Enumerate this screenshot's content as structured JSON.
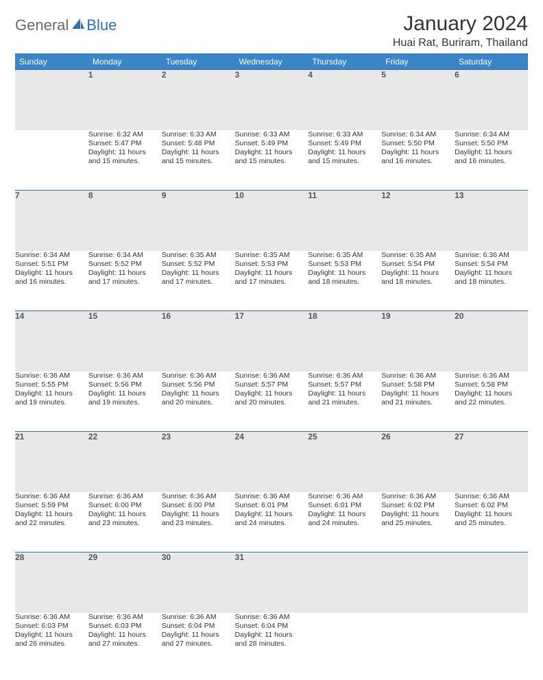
{
  "brand": {
    "part1": "General",
    "part2": "Blue",
    "accent_color": "#2f71b8",
    "grey_color": "#6a6a6a"
  },
  "header": {
    "title": "January 2024",
    "location": "Huai Rat, Buriram, Thailand"
  },
  "colors": {
    "header_bg": "#3a85c8",
    "header_text": "#ffffff",
    "daynum_bg": "#e8e8e8",
    "row_border": "#2f6fa8",
    "body_text": "#333333"
  },
  "weekdays": [
    "Sunday",
    "Monday",
    "Tuesday",
    "Wednesday",
    "Thursday",
    "Friday",
    "Saturday"
  ],
  "weeks": [
    [
      null,
      {
        "n": "1",
        "sr": "Sunrise: 6:32 AM",
        "ss": "Sunset: 5:47 PM",
        "d1": "Daylight: 11 hours",
        "d2": "and 15 minutes."
      },
      {
        "n": "2",
        "sr": "Sunrise: 6:33 AM",
        "ss": "Sunset: 5:48 PM",
        "d1": "Daylight: 11 hours",
        "d2": "and 15 minutes."
      },
      {
        "n": "3",
        "sr": "Sunrise: 6:33 AM",
        "ss": "Sunset: 5:49 PM",
        "d1": "Daylight: 11 hours",
        "d2": "and 15 minutes."
      },
      {
        "n": "4",
        "sr": "Sunrise: 6:33 AM",
        "ss": "Sunset: 5:49 PM",
        "d1": "Daylight: 11 hours",
        "d2": "and 15 minutes."
      },
      {
        "n": "5",
        "sr": "Sunrise: 6:34 AM",
        "ss": "Sunset: 5:50 PM",
        "d1": "Daylight: 11 hours",
        "d2": "and 16 minutes."
      },
      {
        "n": "6",
        "sr": "Sunrise: 6:34 AM",
        "ss": "Sunset: 5:50 PM",
        "d1": "Daylight: 11 hours",
        "d2": "and 16 minutes."
      }
    ],
    [
      {
        "n": "7",
        "sr": "Sunrise: 6:34 AM",
        "ss": "Sunset: 5:51 PM",
        "d1": "Daylight: 11 hours",
        "d2": "and 16 minutes."
      },
      {
        "n": "8",
        "sr": "Sunrise: 6:34 AM",
        "ss": "Sunset: 5:52 PM",
        "d1": "Daylight: 11 hours",
        "d2": "and 17 minutes."
      },
      {
        "n": "9",
        "sr": "Sunrise: 6:35 AM",
        "ss": "Sunset: 5:52 PM",
        "d1": "Daylight: 11 hours",
        "d2": "and 17 minutes."
      },
      {
        "n": "10",
        "sr": "Sunrise: 6:35 AM",
        "ss": "Sunset: 5:53 PM",
        "d1": "Daylight: 11 hours",
        "d2": "and 17 minutes."
      },
      {
        "n": "11",
        "sr": "Sunrise: 6:35 AM",
        "ss": "Sunset: 5:53 PM",
        "d1": "Daylight: 11 hours",
        "d2": "and 18 minutes."
      },
      {
        "n": "12",
        "sr": "Sunrise: 6:35 AM",
        "ss": "Sunset: 5:54 PM",
        "d1": "Daylight: 11 hours",
        "d2": "and 18 minutes."
      },
      {
        "n": "13",
        "sr": "Sunrise: 6:36 AM",
        "ss": "Sunset: 5:54 PM",
        "d1": "Daylight: 11 hours",
        "d2": "and 18 minutes."
      }
    ],
    [
      {
        "n": "14",
        "sr": "Sunrise: 6:36 AM",
        "ss": "Sunset: 5:55 PM",
        "d1": "Daylight: 11 hours",
        "d2": "and 19 minutes."
      },
      {
        "n": "15",
        "sr": "Sunrise: 6:36 AM",
        "ss": "Sunset: 5:56 PM",
        "d1": "Daylight: 11 hours",
        "d2": "and 19 minutes."
      },
      {
        "n": "16",
        "sr": "Sunrise: 6:36 AM",
        "ss": "Sunset: 5:56 PM",
        "d1": "Daylight: 11 hours",
        "d2": "and 20 minutes."
      },
      {
        "n": "17",
        "sr": "Sunrise: 6:36 AM",
        "ss": "Sunset: 5:57 PM",
        "d1": "Daylight: 11 hours",
        "d2": "and 20 minutes."
      },
      {
        "n": "18",
        "sr": "Sunrise: 6:36 AM",
        "ss": "Sunset: 5:57 PM",
        "d1": "Daylight: 11 hours",
        "d2": "and 21 minutes."
      },
      {
        "n": "19",
        "sr": "Sunrise: 6:36 AM",
        "ss": "Sunset: 5:58 PM",
        "d1": "Daylight: 11 hours",
        "d2": "and 21 minutes."
      },
      {
        "n": "20",
        "sr": "Sunrise: 6:36 AM",
        "ss": "Sunset: 5:58 PM",
        "d1": "Daylight: 11 hours",
        "d2": "and 22 minutes."
      }
    ],
    [
      {
        "n": "21",
        "sr": "Sunrise: 6:36 AM",
        "ss": "Sunset: 5:59 PM",
        "d1": "Daylight: 11 hours",
        "d2": "and 22 minutes."
      },
      {
        "n": "22",
        "sr": "Sunrise: 6:36 AM",
        "ss": "Sunset: 6:00 PM",
        "d1": "Daylight: 11 hours",
        "d2": "and 23 minutes."
      },
      {
        "n": "23",
        "sr": "Sunrise: 6:36 AM",
        "ss": "Sunset: 6:00 PM",
        "d1": "Daylight: 11 hours",
        "d2": "and 23 minutes."
      },
      {
        "n": "24",
        "sr": "Sunrise: 6:36 AM",
        "ss": "Sunset: 6:01 PM",
        "d1": "Daylight: 11 hours",
        "d2": "and 24 minutes."
      },
      {
        "n": "25",
        "sr": "Sunrise: 6:36 AM",
        "ss": "Sunset: 6:01 PM",
        "d1": "Daylight: 11 hours",
        "d2": "and 24 minutes."
      },
      {
        "n": "26",
        "sr": "Sunrise: 6:36 AM",
        "ss": "Sunset: 6:02 PM",
        "d1": "Daylight: 11 hours",
        "d2": "and 25 minutes."
      },
      {
        "n": "27",
        "sr": "Sunrise: 6:36 AM",
        "ss": "Sunset: 6:02 PM",
        "d1": "Daylight: 11 hours",
        "d2": "and 25 minutes."
      }
    ],
    [
      {
        "n": "28",
        "sr": "Sunrise: 6:36 AM",
        "ss": "Sunset: 6:03 PM",
        "d1": "Daylight: 11 hours",
        "d2": "and 26 minutes."
      },
      {
        "n": "29",
        "sr": "Sunrise: 6:36 AM",
        "ss": "Sunset: 6:03 PM",
        "d1": "Daylight: 11 hours",
        "d2": "and 27 minutes."
      },
      {
        "n": "30",
        "sr": "Sunrise: 6:36 AM",
        "ss": "Sunset: 6:04 PM",
        "d1": "Daylight: 11 hours",
        "d2": "and 27 minutes."
      },
      {
        "n": "31",
        "sr": "Sunrise: 6:36 AM",
        "ss": "Sunset: 6:04 PM",
        "d1": "Daylight: 11 hours",
        "d2": "and 28 minutes."
      },
      null,
      null,
      null
    ]
  ]
}
